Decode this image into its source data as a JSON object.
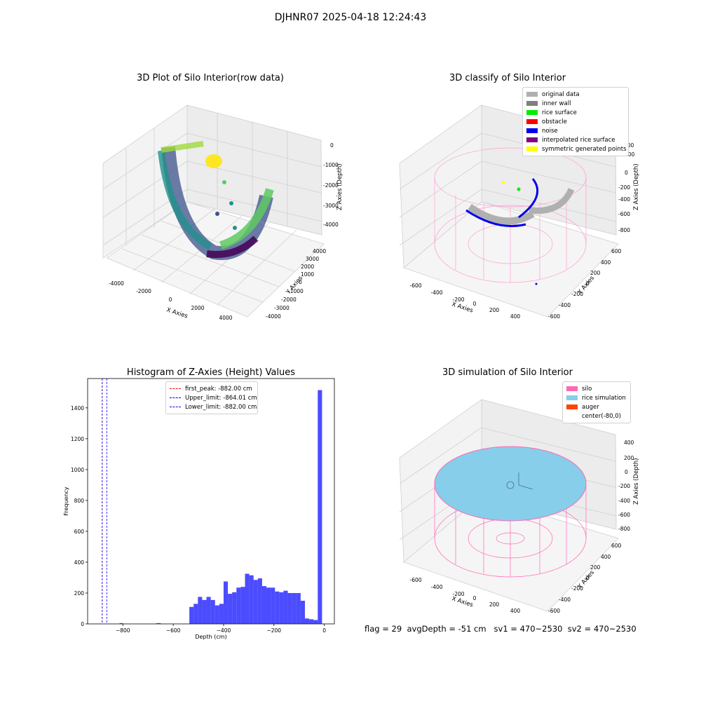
{
  "suptitle": "DJHNR07 2025-04-18 12:24:43",
  "panels": {
    "raw": {
      "title": "3D Plot of Silo Interior(row data)",
      "xlabel": "X Axies",
      "ylabel": "Y Axies",
      "zlabel": "Z Axies (Depth)",
      "xticks": [
        "-4000",
        "-2000",
        "0",
        "2000",
        "4000"
      ],
      "yticks": [
        "-4000",
        "-3000",
        "-2000",
        "-1000",
        "0",
        "1000",
        "2000",
        "3000",
        "4000"
      ],
      "zticks": [
        "0",
        "-1000",
        "-2000",
        "-3000",
        "-4000"
      ]
    },
    "classify": {
      "title": "3D classify of Silo Interior",
      "xlabel": "X Axies",
      "ylabel": "Y Axies",
      "zlabel": "Z Axies (Depth)",
      "xticks": [
        "-600",
        "-400",
        "-200",
        "0",
        "200",
        "400"
      ],
      "yticks": [
        "-600",
        "-400",
        "-200",
        "0",
        "200",
        "400",
        "600"
      ],
      "zticks": [
        "200",
        "0",
        "-200",
        "-400",
        "-600",
        "-800"
      ],
      "legend": [
        {
          "label": "original data",
          "color": "#b0b0b0"
        },
        {
          "label": "inner wall",
          "color": "#808080"
        },
        {
          "label": "rice surface",
          "color": "#00ee00"
        },
        {
          "label": "obstacle",
          "color": "#ff0000"
        },
        {
          "label": "noise",
          "color": "#0000ee"
        },
        {
          "label": "interpolated rice surface",
          "color": "#800080"
        },
        {
          "label": "symmetric generated points",
          "color": "#ffff00"
        }
      ]
    },
    "simulation": {
      "title": "3D simulation of Silo Interior",
      "xlabel": "X Axies",
      "ylabel": "Y Axies",
      "zlabel": "Z Axies (Depth)",
      "xticks": [
        "-600",
        "-400",
        "-200",
        "0",
        "200",
        "400"
      ],
      "yticks": [
        "-600",
        "-400",
        "-200",
        "0",
        "200",
        "400",
        "600"
      ],
      "zticks": [
        "400",
        "200",
        "0",
        "-200",
        "-400",
        "-600",
        "-800"
      ],
      "legend": [
        {
          "label": "silo",
          "color": "#ff69b4"
        },
        {
          "label": "rice simulation",
          "color": "#87ceeb"
        },
        {
          "label": "auger",
          "color": "#ff4500"
        },
        {
          "label": "center(-80,0)",
          "color": "#ffffff"
        }
      ]
    }
  },
  "chart_data": {
    "type": "bar",
    "title": "Histogram of Z-Axies (Height) Values",
    "xlabel": "Depth (cm)",
    "ylabel": "Frequency",
    "xlim": [
      -940,
      40
    ],
    "ylim": [
      0,
      1590
    ],
    "xticks": [
      -800,
      -600,
      -400,
      -200,
      0
    ],
    "yticks": [
      0,
      200,
      400,
      600,
      800,
      1000,
      1200,
      1400
    ],
    "bar_color": "#0000ff",
    "bins": [
      {
        "x0": -813,
        "x1": -800,
        "value": 5
      },
      {
        "x0": -667,
        "x1": -650,
        "value": 5
      },
      {
        "x0": -536,
        "x1": -519,
        "value": 110
      },
      {
        "x0": -519,
        "x1": -502,
        "value": 130
      },
      {
        "x0": -502,
        "x1": -485,
        "value": 175
      },
      {
        "x0": -485,
        "x1": -468,
        "value": 155
      },
      {
        "x0": -468,
        "x1": -451,
        "value": 175
      },
      {
        "x0": -451,
        "x1": -434,
        "value": 155
      },
      {
        "x0": -434,
        "x1": -417,
        "value": 120
      },
      {
        "x0": -417,
        "x1": -400,
        "value": 130
      },
      {
        "x0": -400,
        "x1": -383,
        "value": 275
      },
      {
        "x0": -383,
        "x1": -366,
        "value": 195
      },
      {
        "x0": -366,
        "x1": -349,
        "value": 205
      },
      {
        "x0": -349,
        "x1": -332,
        "value": 235
      },
      {
        "x0": -332,
        "x1": -315,
        "value": 240
      },
      {
        "x0": -315,
        "x1": -298,
        "value": 325
      },
      {
        "x0": -298,
        "x1": -281,
        "value": 315
      },
      {
        "x0": -281,
        "x1": -264,
        "value": 285
      },
      {
        "x0": -264,
        "x1": -247,
        "value": 295
      },
      {
        "x0": -247,
        "x1": -230,
        "value": 245
      },
      {
        "x0": -230,
        "x1": -213,
        "value": 235
      },
      {
        "x0": -213,
        "x1": -196,
        "value": 235
      },
      {
        "x0": -196,
        "x1": -179,
        "value": 210
      },
      {
        "x0": -179,
        "x1": -162,
        "value": 205
      },
      {
        "x0": -162,
        "x1": -145,
        "value": 215
      },
      {
        "x0": -145,
        "x1": -128,
        "value": 200
      },
      {
        "x0": -128,
        "x1": -111,
        "value": 200
      },
      {
        "x0": -111,
        "x1": -94,
        "value": 200
      },
      {
        "x0": -94,
        "x1": -77,
        "value": 150
      },
      {
        "x0": -77,
        "x1": -60,
        "value": 35
      },
      {
        "x0": -60,
        "x1": -43,
        "value": 30
      },
      {
        "x0": -43,
        "x1": -26,
        "value": 25
      },
      {
        "x0": -26,
        "x1": -9,
        "value": 1515
      }
    ],
    "vlines": [
      {
        "label": "first_peak: -882.00 cm",
        "x": -882,
        "color": "#ff0000"
      },
      {
        "label": "Upper_limit: -864.01 cm",
        "x": -864.01,
        "color": "#0000ff"
      },
      {
        "label": "Lower_limit: -882.00 cm",
        "x": -882,
        "color": "#0000ff"
      }
    ]
  },
  "footer": "flag = 29  avgDepth = -51 cm   sv1 = 470~2530  sv2 = 470~2530"
}
